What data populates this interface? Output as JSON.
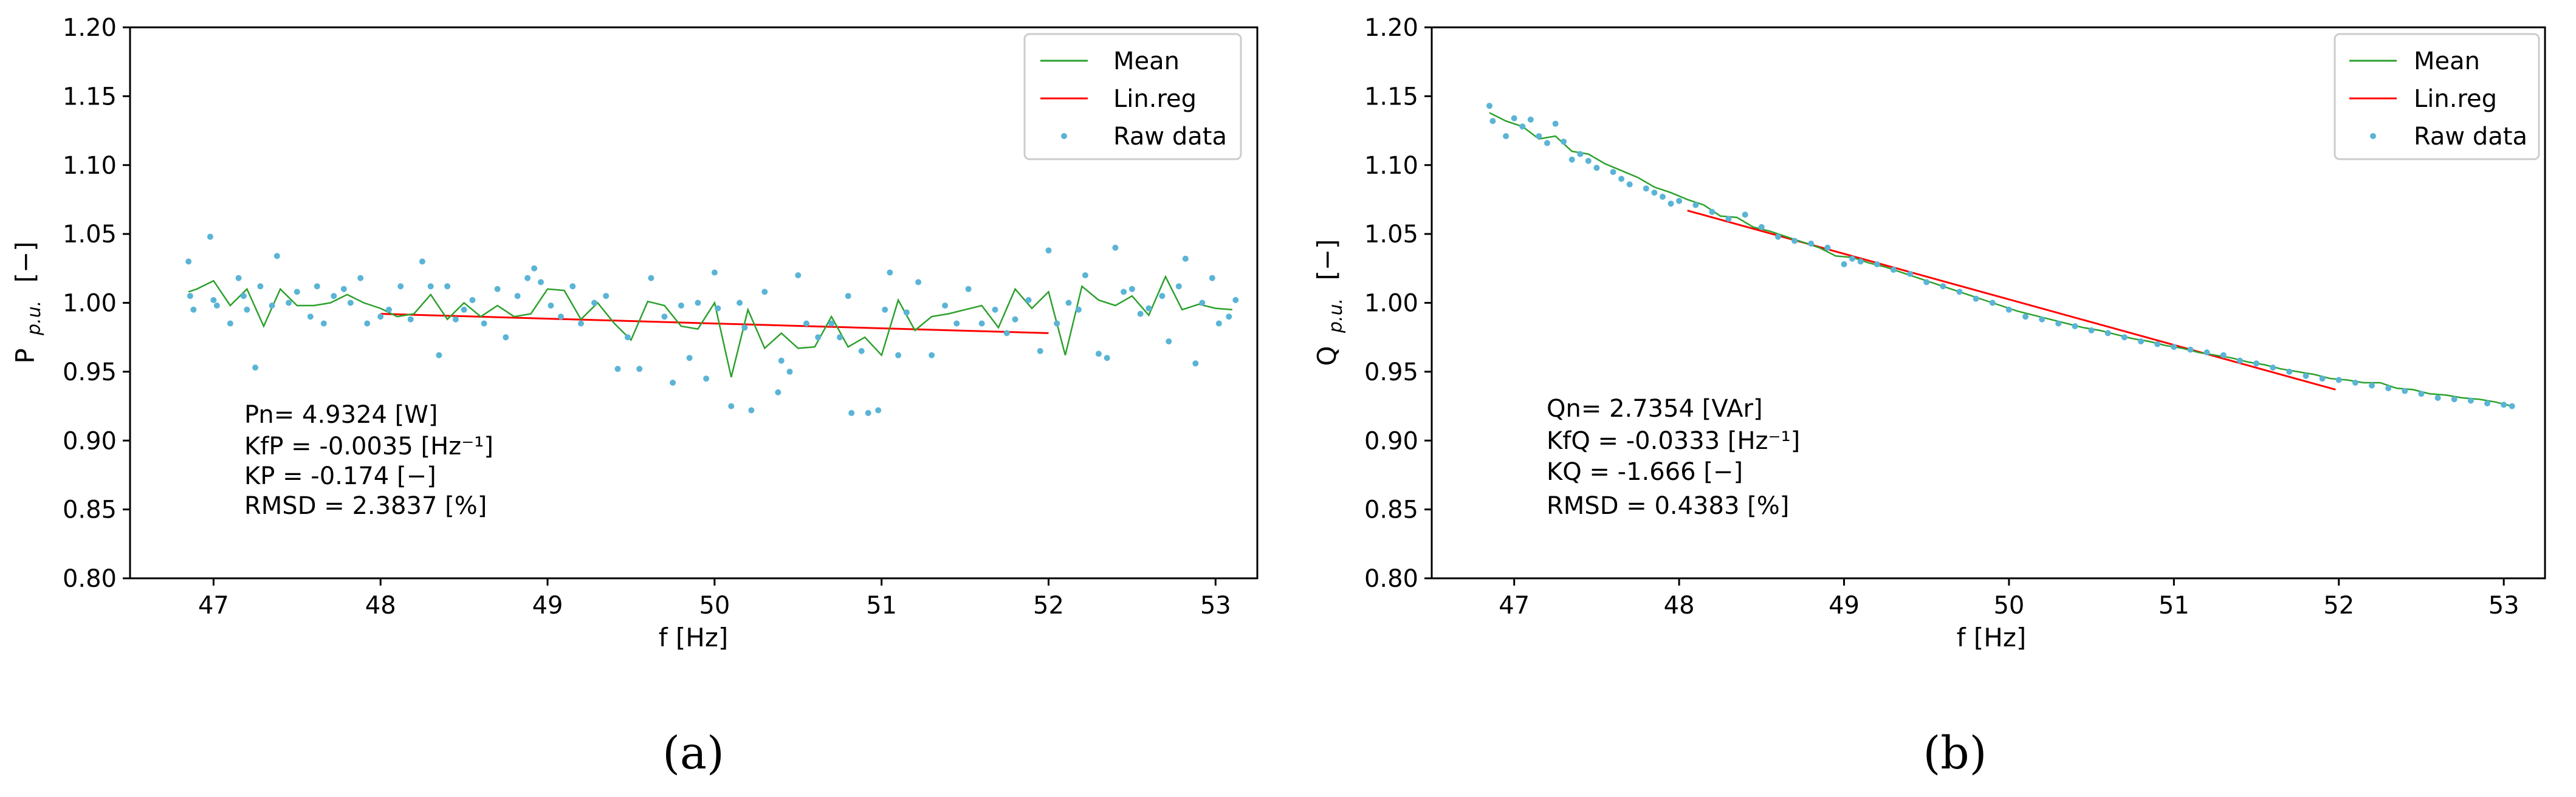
{
  "figure_labels": {
    "a": "(a)",
    "b": "(b)"
  },
  "legend_entries": [
    "Mean",
    "Lin.reg",
    "Raw data"
  ],
  "colors": {
    "mean": "#2ca02c",
    "linreg": "#ff0000",
    "raw": "#5ab4d6",
    "axis": "#000000"
  },
  "chart_data": [
    {
      "type": "scatter",
      "panel": "a",
      "xlabel": "f [Hz]",
      "ylabel_main": "P",
      "ylabel_sub": "p.u.",
      "ylabel_unit": "[−]",
      "xlim": [
        46.5,
        53.25
      ],
      "ylim": [
        0.8,
        1.2
      ],
      "xticks": [
        47,
        48,
        49,
        50,
        51,
        52,
        53
      ],
      "yticks": [
        "0.80",
        "0.85",
        "0.90",
        "0.95",
        "1.00",
        "1.05",
        "1.10",
        "1.15",
        "1.20"
      ],
      "annotation_lines": [
        "Pn= 4.9324 [W]",
        "KfP = -0.0035 [Hz⁻¹]",
        "KP = -0.174 [−]",
        "RMSD = 2.3837 [%]"
      ],
      "linreg": {
        "x": [
          48.0,
          52.0
        ],
        "y": [
          0.992,
          0.978
        ]
      },
      "series": [
        {
          "name": "Mean",
          "x": [
            46.85,
            46.9,
            47.0,
            47.1,
            47.2,
            47.3,
            47.4,
            47.5,
            47.6,
            47.7,
            47.8,
            47.9,
            48.0,
            48.1,
            48.2,
            48.3,
            48.4,
            48.5,
            48.6,
            48.7,
            48.8,
            48.9,
            49.0,
            49.1,
            49.2,
            49.3,
            49.4,
            49.5,
            49.6,
            49.7,
            49.8,
            49.9,
            50.0,
            50.1,
            50.2,
            50.3,
            50.4,
            50.5,
            50.6,
            50.7,
            50.8,
            50.9,
            51.0,
            51.1,
            51.2,
            51.3,
            51.4,
            51.5,
            51.6,
            51.7,
            51.8,
            51.9,
            52.0,
            52.1,
            52.2,
            52.3,
            52.4,
            52.5,
            52.6,
            52.7,
            52.8,
            52.9,
            53.0,
            53.1
          ],
          "y": [
            1.008,
            1.01,
            1.016,
            0.998,
            1.01,
            0.983,
            1.01,
            0.998,
            0.998,
            1.0,
            1.006,
            1.0,
            0.996,
            0.99,
            0.992,
            1.006,
            0.988,
            1.0,
            0.99,
            0.998,
            0.99,
            0.992,
            1.01,
            1.009,
            0.988,
            1.0,
            0.985,
            0.973,
            1.001,
            0.998,
            0.983,
            0.981,
            1.0,
            0.946,
            0.995,
            0.967,
            0.978,
            0.967,
            0.968,
            0.99,
            0.968,
            0.975,
            0.962,
            1.002,
            0.98,
            0.99,
            0.992,
            0.995,
            0.998,
            0.982,
            1.01,
            0.996,
            1.008,
            0.962,
            1.012,
            1.002,
            0.998,
            1.005,
            0.991,
            1.019,
            0.995,
            0.999,
            0.996,
            0.995
          ]
        },
        {
          "name": "Raw data",
          "x": [
            46.85,
            46.86,
            46.88,
            46.98,
            47.0,
            47.02,
            47.1,
            47.15,
            47.18,
            47.2,
            47.25,
            47.28,
            47.35,
            47.38,
            47.45,
            47.5,
            47.58,
            47.62,
            47.66,
            47.72,
            47.78,
            47.82,
            47.88,
            47.92,
            48.0,
            48.05,
            48.12,
            48.18,
            48.25,
            48.3,
            48.35,
            48.4,
            48.45,
            48.5,
            48.55,
            48.62,
            48.7,
            48.75,
            48.82,
            48.88,
            48.92,
            48.96,
            49.02,
            49.08,
            49.15,
            49.2,
            49.28,
            49.35,
            49.42,
            49.48,
            49.55,
            49.62,
            49.7,
            49.75,
            49.8,
            49.85,
            49.9,
            49.95,
            50.0,
            50.02,
            50.1,
            50.15,
            50.18,
            50.22,
            50.3,
            50.38,
            50.4,
            50.45,
            50.5,
            50.55,
            50.62,
            50.7,
            50.75,
            50.8,
            50.82,
            50.88,
            50.92,
            50.98,
            51.02,
            51.05,
            51.1,
            51.15,
            51.22,
            51.3,
            51.38,
            51.45,
            51.52,
            51.6,
            51.68,
            51.75,
            51.8,
            51.88,
            51.95,
            52.0,
            52.05,
            52.12,
            52.18,
            52.22,
            52.3,
            52.35,
            52.4,
            52.45,
            52.5,
            52.55,
            52.6,
            52.68,
            52.72,
            52.78,
            52.82,
            52.88,
            52.92,
            52.98,
            53.02,
            53.08,
            53.12
          ],
          "y": [
            1.03,
            1.005,
            0.995,
            1.048,
            1.002,
            0.998,
            0.985,
            1.018,
            1.005,
            0.995,
            0.953,
            1.012,
            0.998,
            1.034,
            1.0,
            1.008,
            0.99,
            1.012,
            0.985,
            1.005,
            1.01,
            1.0,
            1.018,
            0.985,
            0.99,
            0.995,
            1.012,
            0.988,
            1.03,
            1.012,
            0.962,
            1.012,
            0.988,
            0.995,
            1.002,
            0.985,
            1.01,
            0.975,
            1.005,
            1.018,
            1.025,
            1.015,
            0.998,
            0.99,
            1.012,
            0.985,
            1.0,
            1.005,
            0.952,
            0.975,
            0.952,
            1.018,
            0.99,
            0.942,
            0.998,
            0.96,
            1.0,
            0.945,
            1.022,
            0.996,
            0.925,
            1.0,
            0.982,
            0.922,
            1.008,
            0.935,
            0.958,
            0.95,
            1.02,
            0.985,
            0.975,
            0.985,
            0.975,
            1.005,
            0.92,
            0.965,
            0.92,
            0.922,
            0.995,
            1.022,
            0.962,
            0.993,
            1.015,
            0.962,
            0.998,
            0.985,
            1.01,
            0.985,
            0.995,
            0.978,
            0.988,
            1.002,
            0.965,
            1.038,
            0.985,
            1.0,
            0.995,
            1.02,
            0.963,
            0.96,
            1.04,
            1.008,
            1.01,
            0.992,
            0.996,
            1.005,
            0.972,
            1.012,
            1.032,
            0.956,
            1.0,
            1.018,
            0.985,
            0.99,
            1.002
          ]
        }
      ]
    },
    {
      "type": "scatter",
      "panel": "b",
      "xlabel": "f [Hz]",
      "ylabel_main": "Q",
      "ylabel_sub": "p.u.",
      "ylabel_unit": "[−]",
      "xlim": [
        46.5,
        53.25
      ],
      "ylim": [
        0.8,
        1.2
      ],
      "xticks": [
        47,
        48,
        49,
        50,
        51,
        52,
        53
      ],
      "yticks": [
        "0.80",
        "0.85",
        "0.90",
        "0.95",
        "1.00",
        "1.05",
        "1.10",
        "1.15",
        "1.20"
      ],
      "annotation_lines": [
        "Qn= 2.7354 [VAr]",
        "KfQ = -0.0333 [Hz⁻¹]",
        "KQ = -1.666 [−]",
        "RMSD = 0.4383 [%]"
      ],
      "linreg": {
        "x": [
          48.05,
          51.98
        ],
        "y": [
          1.067,
          0.937
        ]
      },
      "series": [
        {
          "name": "Mean",
          "x": [
            46.85,
            46.95,
            47.05,
            47.15,
            47.25,
            47.35,
            47.45,
            47.55,
            47.65,
            47.75,
            47.85,
            47.95,
            48.05,
            48.15,
            48.25,
            48.35,
            48.45,
            48.55,
            48.65,
            48.75,
            48.85,
            48.95,
            49.05,
            49.15,
            49.25,
            49.35,
            49.45,
            49.55,
            49.65,
            49.75,
            49.85,
            49.95,
            50.05,
            50.15,
            50.25,
            50.35,
            50.45,
            50.55,
            50.65,
            50.75,
            50.85,
            50.95,
            51.05,
            51.15,
            51.25,
            51.35,
            51.45,
            51.55,
            51.65,
            51.75,
            51.85,
            51.95,
            52.05,
            52.15,
            52.25,
            52.35,
            52.45,
            52.55,
            52.65,
            52.75,
            52.85,
            52.95,
            53.05
          ],
          "y": [
            1.138,
            1.132,
            1.128,
            1.119,
            1.121,
            1.11,
            1.108,
            1.101,
            1.096,
            1.091,
            1.084,
            1.08,
            1.075,
            1.071,
            1.063,
            1.062,
            1.055,
            1.052,
            1.048,
            1.044,
            1.04,
            1.034,
            1.033,
            1.029,
            1.026,
            1.022,
            1.018,
            1.014,
            1.01,
            1.006,
            1.002,
            0.998,
            0.994,
            0.991,
            0.988,
            0.985,
            0.982,
            0.98,
            0.977,
            0.974,
            0.972,
            0.969,
            0.967,
            0.964,
            0.962,
            0.96,
            0.957,
            0.955,
            0.952,
            0.95,
            0.948,
            0.945,
            0.944,
            0.942,
            0.942,
            0.938,
            0.937,
            0.934,
            0.933,
            0.931,
            0.93,
            0.928,
            0.925
          ]
        },
        {
          "name": "Raw data",
          "x": [
            46.85,
            46.87,
            46.95,
            47.0,
            47.05,
            47.1,
            47.15,
            47.2,
            47.25,
            47.3,
            47.35,
            47.4,
            47.45,
            47.5,
            47.6,
            47.65,
            47.7,
            47.8,
            47.85,
            47.9,
            47.95,
            48.0,
            48.1,
            48.2,
            48.3,
            48.4,
            48.5,
            48.6,
            48.7,
            48.8,
            48.9,
            49.0,
            49.05,
            49.1,
            49.2,
            49.3,
            49.4,
            49.5,
            49.6,
            49.7,
            49.8,
            49.9,
            50.0,
            50.1,
            50.2,
            50.3,
            50.4,
            50.5,
            50.6,
            50.7,
            50.8,
            50.9,
            51.0,
            51.1,
            51.2,
            51.3,
            51.4,
            51.5,
            51.6,
            51.7,
            51.8,
            51.9,
            52.0,
            52.1,
            52.2,
            52.3,
            52.4,
            52.5,
            52.6,
            52.7,
            52.8,
            52.9,
            53.0,
            53.05
          ],
          "y": [
            1.143,
            1.132,
            1.121,
            1.134,
            1.128,
            1.133,
            1.121,
            1.116,
            1.13,
            1.117,
            1.104,
            1.108,
            1.103,
            1.098,
            1.095,
            1.09,
            1.086,
            1.083,
            1.08,
            1.077,
            1.072,
            1.074,
            1.071,
            1.066,
            1.061,
            1.064,
            1.055,
            1.048,
            1.045,
            1.043,
            1.04,
            1.028,
            1.032,
            1.03,
            1.028,
            1.024,
            1.021,
            1.015,
            1.012,
            1.008,
            1.003,
            1.0,
            0.995,
            0.99,
            0.988,
            0.985,
            0.983,
            0.98,
            0.978,
            0.975,
            0.972,
            0.97,
            0.968,
            0.966,
            0.964,
            0.962,
            0.958,
            0.956,
            0.953,
            0.95,
            0.947,
            0.945,
            0.944,
            0.942,
            0.94,
            0.938,
            0.936,
            0.934,
            0.931,
            0.93,
            0.929,
            0.927,
            0.926,
            0.925
          ]
        }
      ]
    }
  ]
}
